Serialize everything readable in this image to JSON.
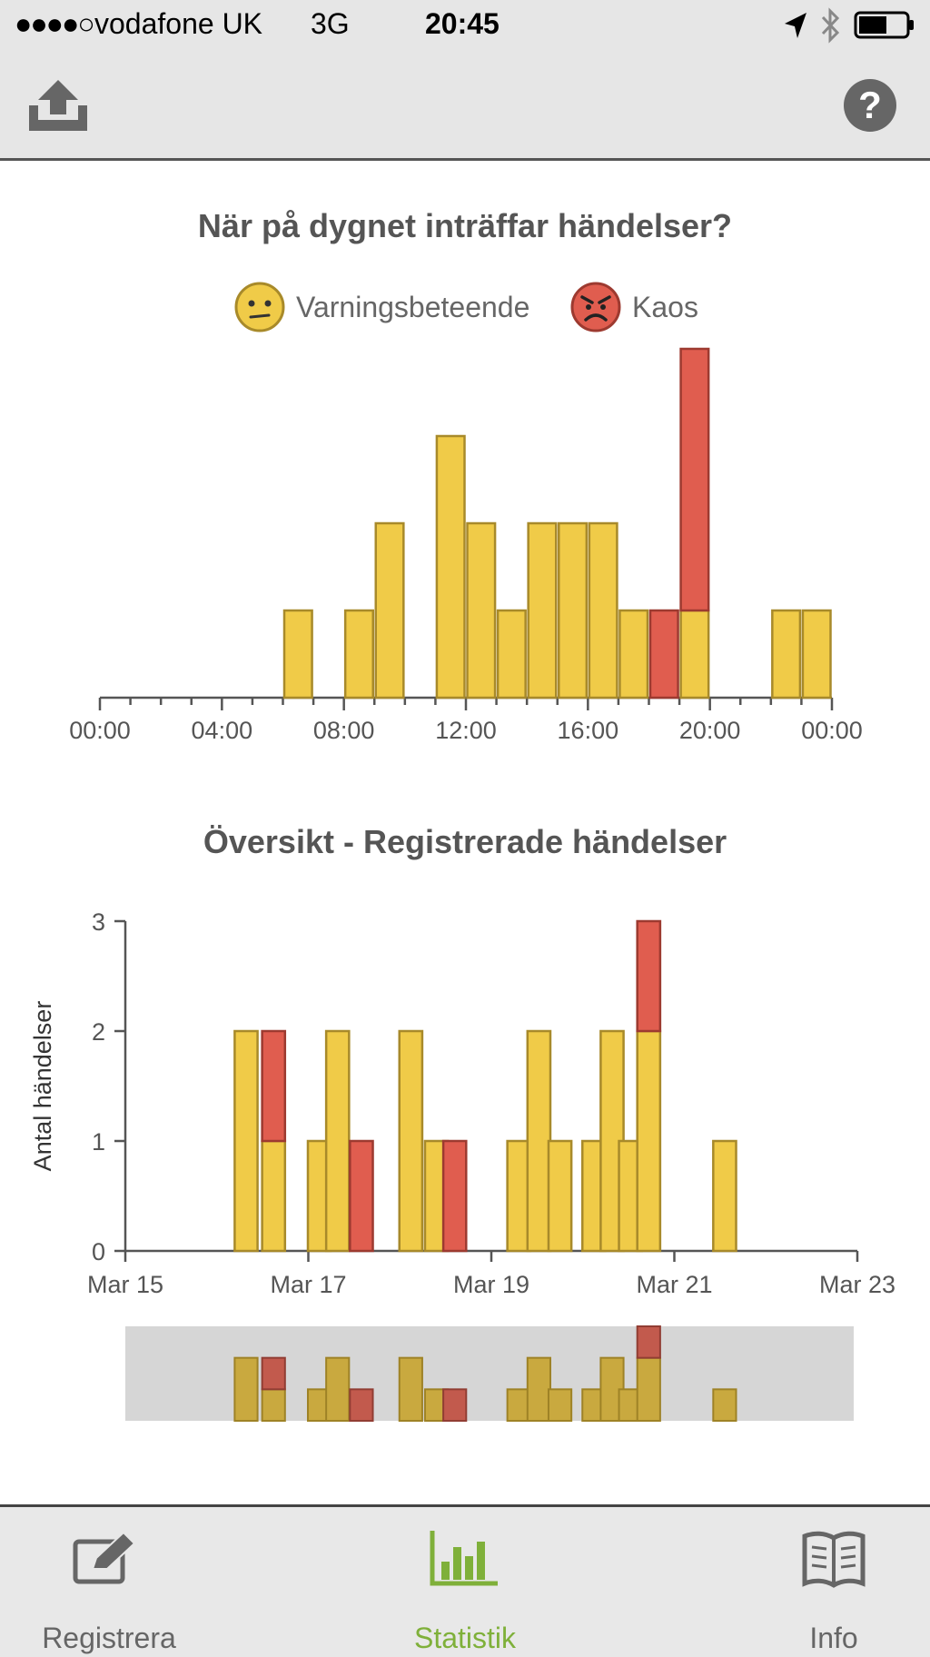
{
  "status_bar": {
    "signal": "●●●●○",
    "carrier": "vodafone UK",
    "network": "3G",
    "time": "20:45"
  },
  "nav": {
    "left_icon": "share-upload-icon",
    "right_icon": "help-icon"
  },
  "colors": {
    "yellow": "#f0cb48",
    "yellow_stroke": "#a88a2a",
    "red": "#e05d4f",
    "red_stroke": "#9d3a30",
    "active_tab": "#7fb03a",
    "inactive_tab": "#666666"
  },
  "chart1": {
    "title": "När på dygnet inträffar händelser?",
    "legend": [
      {
        "label": "Varningsbeteende",
        "icon": "confused-face-icon"
      },
      {
        "label": "Kaos",
        "icon": "angry-face-icon"
      }
    ]
  },
  "chart2": {
    "title": "Översikt - Registrerade händelser",
    "ylabel": "Antal händelser"
  },
  "chart_data": [
    {
      "type": "bar",
      "title": "När på dygnet inträffar händelser?",
      "x_ticks": [
        "00:00",
        "04:00",
        "08:00",
        "12:00",
        "16:00",
        "20:00",
        "00:00"
      ],
      "x_range_hours": [
        0,
        24
      ],
      "series": [
        {
          "name": "Varningsbeteende",
          "color": "#f0cb48",
          "points": [
            {
              "hour": 6,
              "value": 1
            },
            {
              "hour": 8,
              "value": 1
            },
            {
              "hour": 9,
              "value": 2
            },
            {
              "hour": 11,
              "value": 3
            },
            {
              "hour": 12,
              "value": 2
            },
            {
              "hour": 13,
              "value": 1
            },
            {
              "hour": 14,
              "value": 2
            },
            {
              "hour": 15,
              "value": 2
            },
            {
              "hour": 16,
              "value": 2
            },
            {
              "hour": 17,
              "value": 1
            },
            {
              "hour": 19,
              "value": 1
            },
            {
              "hour": 22,
              "value": 1
            },
            {
              "hour": 23,
              "value": 1
            }
          ]
        },
        {
          "name": "Kaos",
          "color": "#e05d4f",
          "points": [
            {
              "hour": 18,
              "value": 1
            },
            {
              "hour": 19,
              "value": 3
            }
          ]
        }
      ],
      "grid": false,
      "legend_position": "top"
    },
    {
      "type": "bar",
      "title": "Översikt - Registrerade händelser",
      "ylabel": "Antal händelser",
      "y_ticks": [
        "0",
        "1",
        "2",
        "3"
      ],
      "ylim": [
        0,
        3
      ],
      "x_ticks": [
        "Mar 15",
        "Mar 17",
        "Mar 19",
        "Mar 21",
        "Mar 23"
      ],
      "x_range_days": [
        15,
        23
      ],
      "bar_width_days": 0.25,
      "bars": [
        {
          "day": 16.32,
          "yellow": 2,
          "red": 0
        },
        {
          "day": 16.62,
          "yellow": 1,
          "red": 1
        },
        {
          "day": 17.12,
          "yellow": 1,
          "red": 0
        },
        {
          "day": 17.32,
          "yellow": 2,
          "red": 0
        },
        {
          "day": 17.58,
          "yellow": 0,
          "red": 1
        },
        {
          "day": 18.12,
          "yellow": 2,
          "red": 0
        },
        {
          "day": 18.4,
          "yellow": 1,
          "red": 0
        },
        {
          "day": 18.6,
          "yellow": 0,
          "red": 1
        },
        {
          "day": 19.3,
          "yellow": 1,
          "red": 0
        },
        {
          "day": 19.52,
          "yellow": 2,
          "red": 0
        },
        {
          "day": 19.75,
          "yellow": 1,
          "red": 0
        },
        {
          "day": 20.12,
          "yellow": 1,
          "red": 0
        },
        {
          "day": 20.32,
          "yellow": 2,
          "red": 0
        },
        {
          "day": 20.52,
          "yellow": 1,
          "red": 0
        },
        {
          "day": 20.72,
          "yellow": 2,
          "red": 1
        },
        {
          "day": 21.55,
          "yellow": 1,
          "red": 0
        }
      ],
      "overview_selection": "full range",
      "grid": false
    }
  ],
  "tabs": [
    {
      "label": "Registrera",
      "icon": "edit-icon",
      "active": false
    },
    {
      "label": "Statistik",
      "icon": "bar-chart-icon",
      "active": true
    },
    {
      "label": "Info",
      "icon": "book-icon",
      "active": false
    }
  ]
}
